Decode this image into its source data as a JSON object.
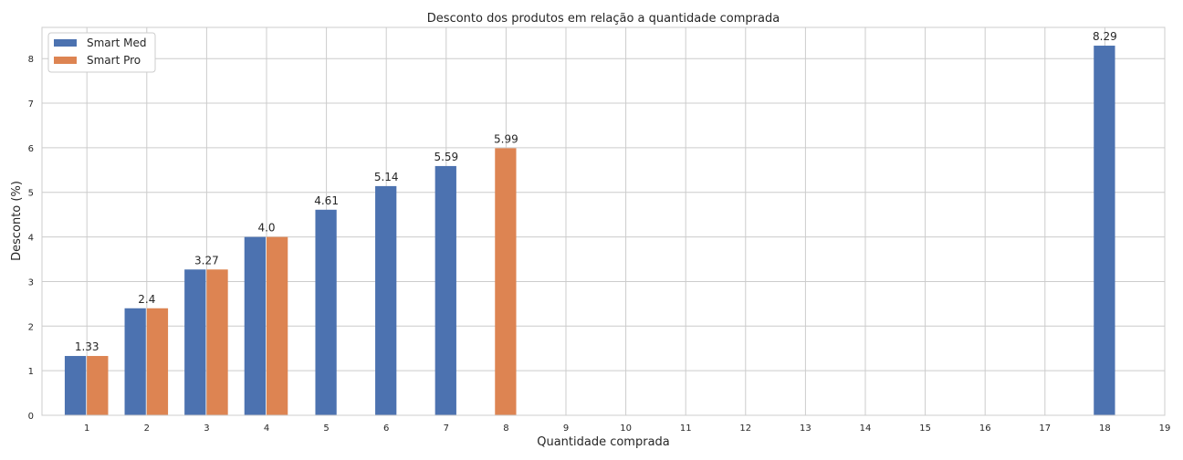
{
  "chart_data": {
    "type": "bar",
    "title": "Desconto dos produtos em relação a quantidade comprada",
    "xlabel": "Quantidade comprada",
    "ylabel": "Desconto (%)",
    "x_ticks": [
      1,
      2,
      3,
      4,
      5,
      6,
      7,
      8,
      9,
      10,
      11,
      12,
      13,
      14,
      15,
      16,
      17,
      18,
      19
    ],
    "y_ticks": [
      0,
      1,
      2,
      3,
      4,
      5,
      6,
      7,
      8
    ],
    "xlim": [
      0.25,
      19
    ],
    "ylim": [
      0,
      8.7
    ],
    "grid": true,
    "legend_position": "top-left",
    "series": [
      {
        "name": "Smart Med",
        "color": "#4c72b0",
        "points": [
          {
            "x": 1,
            "y": 1.33
          },
          {
            "x": 2,
            "y": 2.4
          },
          {
            "x": 3,
            "y": 3.27
          },
          {
            "x": 4,
            "y": 4.0
          },
          {
            "x": 5,
            "y": 4.61
          },
          {
            "x": 6,
            "y": 5.14
          },
          {
            "x": 7,
            "y": 5.59
          },
          {
            "x": 18,
            "y": 8.29
          }
        ]
      },
      {
        "name": "Smart Pro",
        "color": "#dd8452",
        "points": [
          {
            "x": 1,
            "y": 1.33
          },
          {
            "x": 2,
            "y": 2.4
          },
          {
            "x": 3,
            "y": 3.27
          },
          {
            "x": 4,
            "y": 4.0
          },
          {
            "x": 8,
            "y": 5.99
          }
        ]
      }
    ],
    "data_labels": [
      {
        "x": 1,
        "text": "1.33"
      },
      {
        "x": 2,
        "text": "2.4"
      },
      {
        "x": 3,
        "text": "3.27"
      },
      {
        "x": 4,
        "text": "4.0"
      },
      {
        "x": 5,
        "text": "4.61"
      },
      {
        "x": 6,
        "text": "5.14"
      },
      {
        "x": 7,
        "text": "5.59"
      },
      {
        "x": 8,
        "text": "5.99"
      },
      {
        "x": 18,
        "text": "8.29"
      }
    ]
  }
}
